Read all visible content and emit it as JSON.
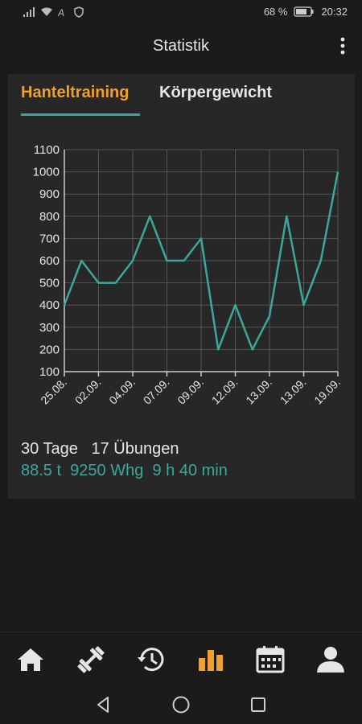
{
  "status_bar": {
    "battery_percent": "68 %",
    "time": "20:32",
    "icons": [
      "signal-icon",
      "wifi-icon",
      "nfc-icon",
      "shield-icon",
      "battery-icon"
    ]
  },
  "app_bar": {
    "title": "Statistik",
    "menu_icon": "overflow-menu-icon"
  },
  "tabs": [
    {
      "label": "Hanteltraining",
      "active": true
    },
    {
      "label": "Körpergewicht",
      "active": false
    }
  ],
  "colors": {
    "accent": "#f0a030",
    "teal": "#3aa89c",
    "background": "#1b1b1b",
    "card": "#272727"
  },
  "chart_data": {
    "type": "line",
    "x": [
      "25.08.",
      "",
      "02.09.",
      "",
      "04.09.",
      "",
      "07.09.",
      "",
      "09.09.",
      "",
      "12.09.",
      "",
      "13.09.",
      "",
      "13.09.",
      "",
      "19.09."
    ],
    "tick_labels": [
      "25.08.",
      "02.09.",
      "04.09.",
      "07.09.",
      "09.09.",
      "12.09.",
      "13.09.",
      "13.09.",
      "19.09."
    ],
    "values": [
      400,
      600,
      500,
      500,
      600,
      800,
      600,
      600,
      700,
      200,
      400,
      200,
      350,
      800,
      400,
      600,
      1000
    ],
    "ylim": [
      100,
      1100
    ],
    "yticks": [
      100,
      200,
      300,
      400,
      500,
      600,
      700,
      800,
      900,
      1000,
      1100
    ],
    "grid": true,
    "color": "#3aa89c"
  },
  "summary": {
    "days": "30 Tage",
    "exercises": "17 Übungen",
    "weight": "88.5 t",
    "reps": "9250 Whg",
    "duration": "9 h 40 min"
  },
  "bottom_nav": [
    {
      "icon": "home-icon",
      "active": false
    },
    {
      "icon": "dumbbell-icon",
      "active": false
    },
    {
      "icon": "history-icon",
      "active": false
    },
    {
      "icon": "bar-chart-icon",
      "active": true
    },
    {
      "icon": "calendar-icon",
      "active": false
    },
    {
      "icon": "profile-icon",
      "active": false
    }
  ],
  "system_nav": [
    "back-icon",
    "home-circle-icon",
    "recents-icon"
  ]
}
